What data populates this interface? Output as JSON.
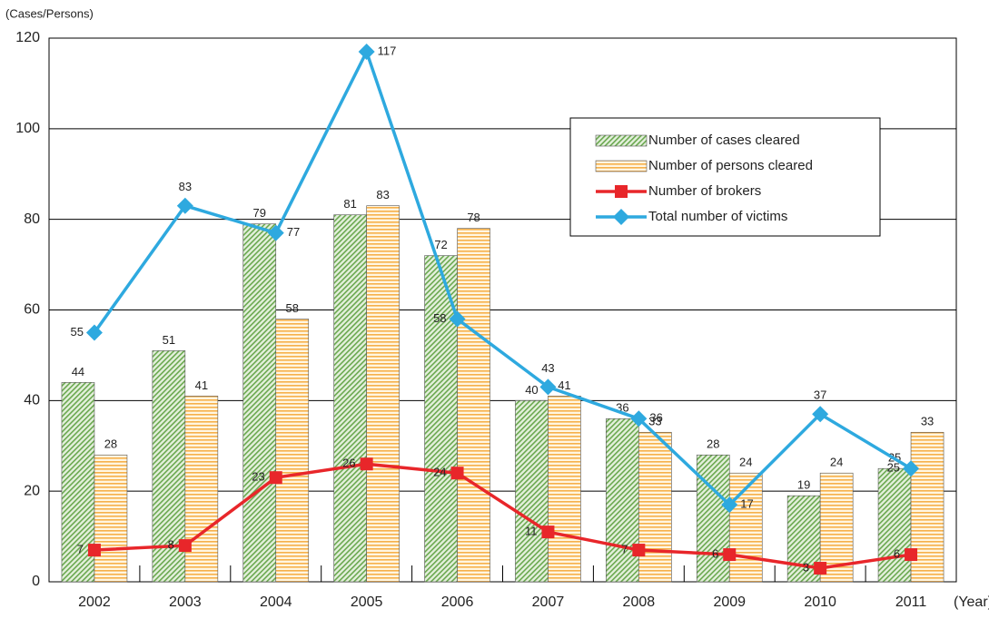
{
  "chart_data": {
    "type": "bar_line",
    "y_label": "(Cases/Persons)",
    "x_label": "(Year)",
    "categories": [
      "2002",
      "2003",
      "2004",
      "2005",
      "2006",
      "2007",
      "2008",
      "2009",
      "2010",
      "2011"
    ],
    "series": [
      {
        "name": "Number of cases cleared",
        "kind": "bar",
        "color": "#6aa84f",
        "values": [
          44,
          51,
          79,
          81,
          72,
          40,
          36,
          28,
          19,
          25
        ]
      },
      {
        "name": "Number of persons cleared",
        "kind": "bar",
        "color": "#f6b04a",
        "values": [
          28,
          41,
          58,
          83,
          78,
          41,
          33,
          24,
          24,
          33
        ]
      },
      {
        "name": "Number of brokers",
        "kind": "line",
        "color": "#e8262a",
        "values": [
          7,
          8,
          23,
          26,
          24,
          11,
          7,
          6,
          3,
          6
        ]
      },
      {
        "name": "Total number of victims",
        "kind": "line",
        "color": "#2ea9df",
        "values": [
          55,
          83,
          77,
          117,
          58,
          43,
          36,
          17,
          37,
          25
        ]
      }
    ],
    "ylim": [
      0,
      120
    ],
    "yticks": [
      0,
      20,
      40,
      60,
      80,
      100,
      120
    ],
    "grid": true
  }
}
